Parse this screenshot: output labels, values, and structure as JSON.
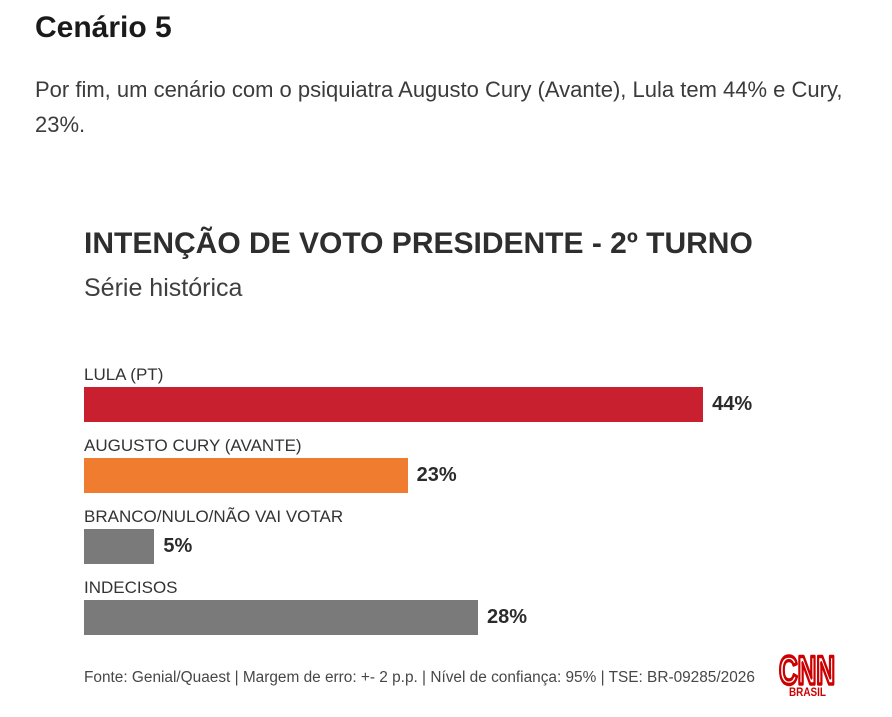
{
  "section": {
    "heading": "Cenário 5",
    "description": "Por fim, um cenário com o psiquiatra Augusto Cury (Avante), Lula tem 44% e Cury, 23%."
  },
  "chart_data": {
    "type": "bar",
    "title": "INTENÇÃO DE VOTO PRESIDENTE - 2º TURNO",
    "subtitle": "Série histórica",
    "categories": [
      "LULA (PT)",
      "AUGUSTO CURY (AVANTE)",
      "BRANCO/NULO/NÃO VAI VOTAR",
      "INDECISOS"
    ],
    "values": [
      44,
      23,
      5,
      28
    ],
    "value_labels": [
      "44%",
      "23%",
      "5%",
      "28%"
    ],
    "colors": [
      "#c8202e",
      "#f07d2f",
      "#7a7a7a",
      "#7a7a7a"
    ],
    "xlabel": "",
    "ylabel": "",
    "grid": false
  },
  "footer": {
    "source": "Fonte: Genial/Quaest | Margem de erro: +- 2 p.p. | Nível de confiança: 95% | TSE: BR-09285/2026"
  },
  "logo": {
    "name": "CNN",
    "sub": "BRASIL",
    "brand_color": "#cc0000"
  }
}
